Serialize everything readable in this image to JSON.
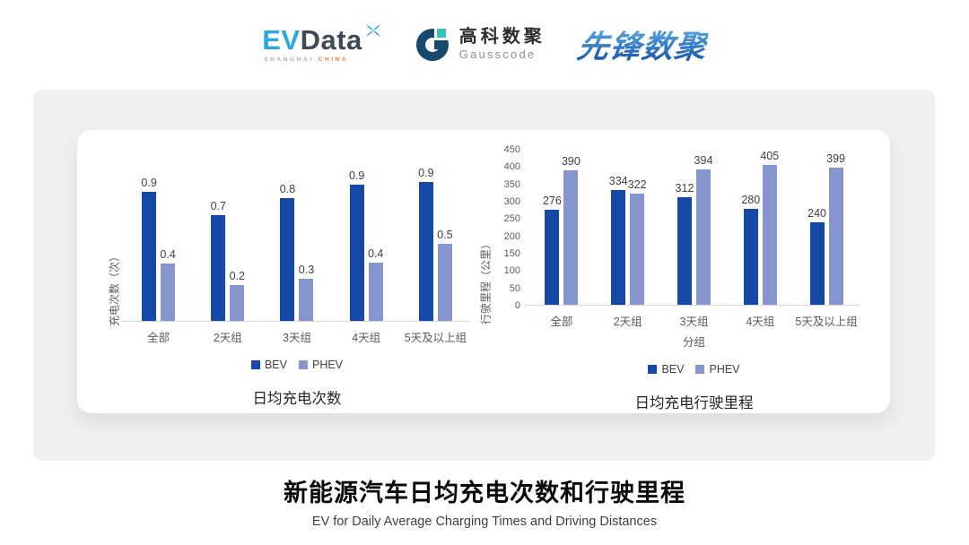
{
  "header": {
    "evdata_logo": {
      "ev": "EV",
      "data": "Data",
      "sub_shanghai": "SHANGHAI",
      "sub_china": "CHINA",
      "ev_color": "#2aa7e0",
      "data_color": "#3d4a57",
      "shanghai_color": "#a9aeb3",
      "china_color": "#ef7f3c"
    },
    "gausscode_logo": {
      "cn": "高科数聚",
      "en": "Gausscode",
      "mark_navy": "#17486e",
      "mark_teal": "#35c2c1"
    },
    "xianfeng_logo": {
      "text": "先锋数聚",
      "color": "#2f7ec7"
    }
  },
  "panel": {
    "background": "#f0f0f0",
    "card_background": "#ffffff"
  },
  "chart_data": [
    {
      "type": "bar",
      "title": "日均充电次数",
      "ylabel": "充电次数（次）",
      "xlabel": "",
      "categories": [
        "全部",
        "2天组",
        "3天组",
        "4天组",
        "5天及以上组"
      ],
      "series": [
        {
          "name": "BEV",
          "color": "#1648a8",
          "values": [
            0.9,
            0.7,
            0.8,
            0.9,
            0.9
          ],
          "labels": [
            "0.9",
            "0.7",
            "0.8",
            "0.9",
            "0.9"
          ],
          "render_values_estimated": [
            0.85,
            0.7,
            0.81,
            0.9,
            0.92
          ]
        },
        {
          "name": "PHEV",
          "color": "#8795ce",
          "values": [
            0.4,
            0.2,
            0.3,
            0.4,
            0.5
          ],
          "labels": [
            "0.4",
            "0.2",
            "0.3",
            "0.4",
            "0.5"
          ],
          "render_values_estimated": [
            0.38,
            0.24,
            0.28,
            0.39,
            0.51
          ]
        }
      ],
      "ylim": [
        0,
        1
      ],
      "y_ticks": [],
      "grid": false,
      "data_labels": true,
      "legend_position": "bottom",
      "legend": [
        "BEV",
        "PHEV"
      ]
    },
    {
      "type": "bar",
      "title": "日均充电行驶里程",
      "ylabel": "行驶里程（公里）",
      "xlabel": "分组",
      "categories": [
        "全部",
        "2天组",
        "3天组",
        "4天组",
        "5天及以上组"
      ],
      "series": [
        {
          "name": "BEV",
          "color": "#1648a8",
          "values": [
            276,
            334,
            312,
            280,
            240
          ]
        },
        {
          "name": "PHEV",
          "color": "#8795ce",
          "values": [
            390,
            322,
            394,
            405,
            399
          ]
        }
      ],
      "ylim": [
        0,
        450
      ],
      "y_ticks": [
        0,
        50,
        100,
        150,
        200,
        250,
        300,
        350,
        400,
        450
      ],
      "grid": false,
      "data_labels": true,
      "legend_position": "bottom",
      "legend": [
        "BEV",
        "PHEV"
      ]
    }
  ],
  "footer": {
    "title": "新能源汽车日均充电次数和行驶里程",
    "subtitle": "EV for Daily Average Charging Times and Driving Distances"
  }
}
